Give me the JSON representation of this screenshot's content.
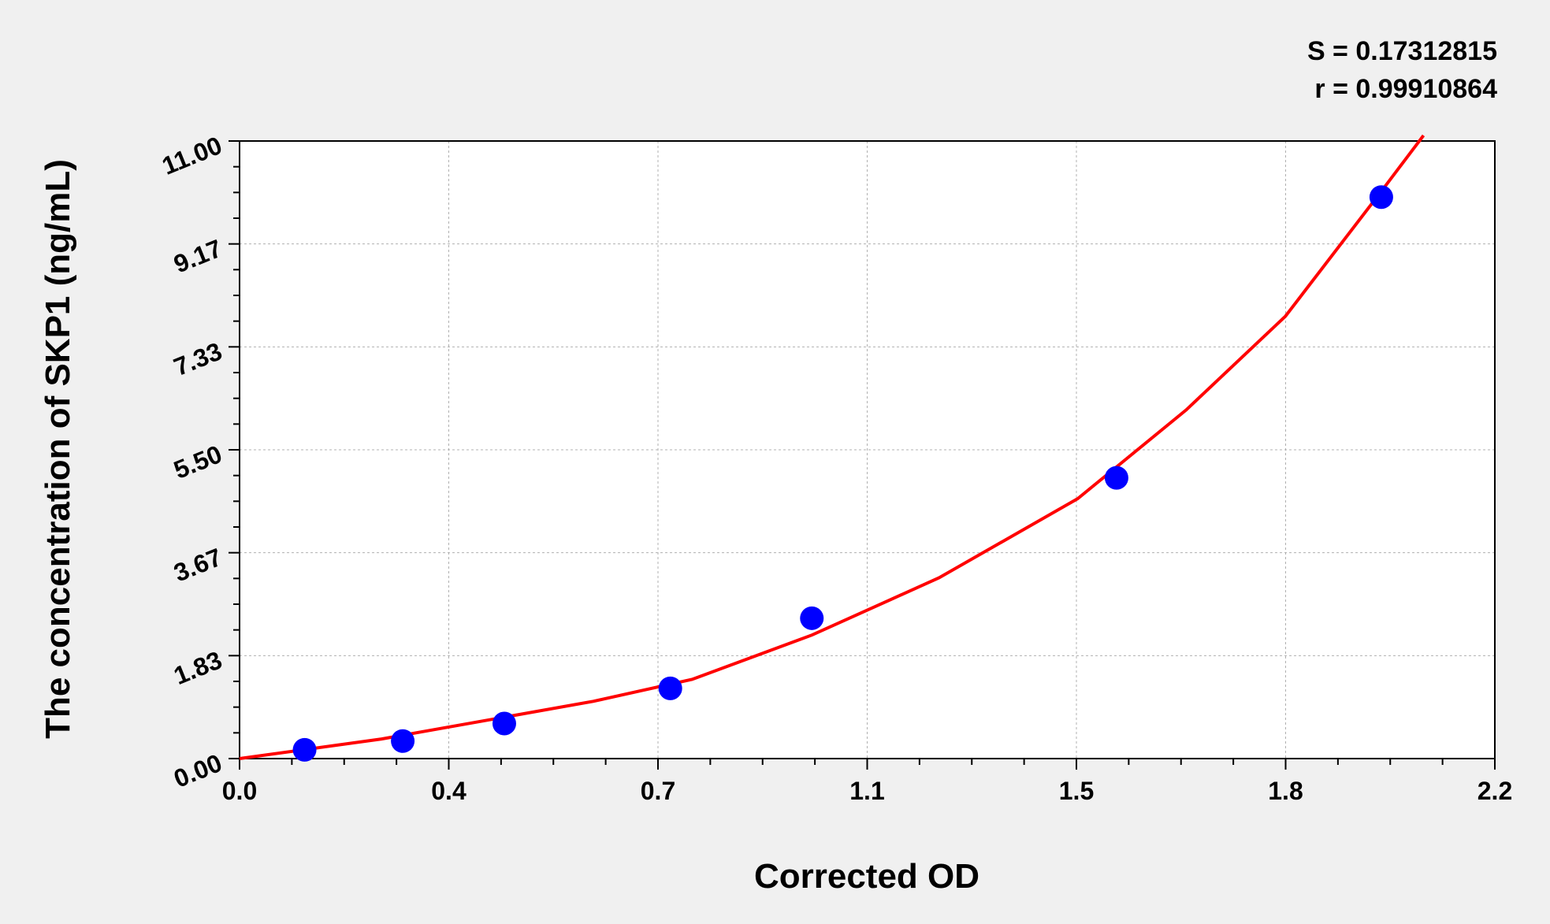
{
  "chart_data": {
    "type": "scatter",
    "title": "",
    "xlabel": "Corrected OD",
    "ylabel": "The concentration of SKP1 (ng/mL)",
    "xlim": [
      0,
      2.2
    ],
    "ylim": [
      0,
      11
    ],
    "x_ticks": [
      "0.0",
      "0.4",
      "0.7",
      "1.1",
      "1.5",
      "1.8",
      "2.2"
    ],
    "y_ticks": [
      "0.00",
      "1.83",
      "3.67",
      "5.50",
      "7.33",
      "9.17",
      "11.00"
    ],
    "grid": true,
    "stats": {
      "s_label": "S = 0.17312815",
      "r_label": "r = 0.99910864"
    },
    "points": {
      "color": "#0000ff",
      "x": [
        0.114,
        0.286,
        0.464,
        0.755,
        1.003,
        1.537,
        2.001
      ],
      "y": [
        0.156,
        0.312,
        0.625,
        1.25,
        2.5,
        5.0,
        10.0
      ]
    },
    "curve": {
      "color": "#ff0000",
      "x": [
        0,
        0.249,
        0.62,
        0.793,
        1.003,
        1.226,
        1.469,
        1.659,
        1.833,
        2.006,
        2.075
      ],
      "y": [
        0,
        0.35,
        1.02,
        1.41,
        2.2,
        3.22,
        4.63,
        6.21,
        7.88,
        10.17,
        11.1
      ]
    }
  }
}
